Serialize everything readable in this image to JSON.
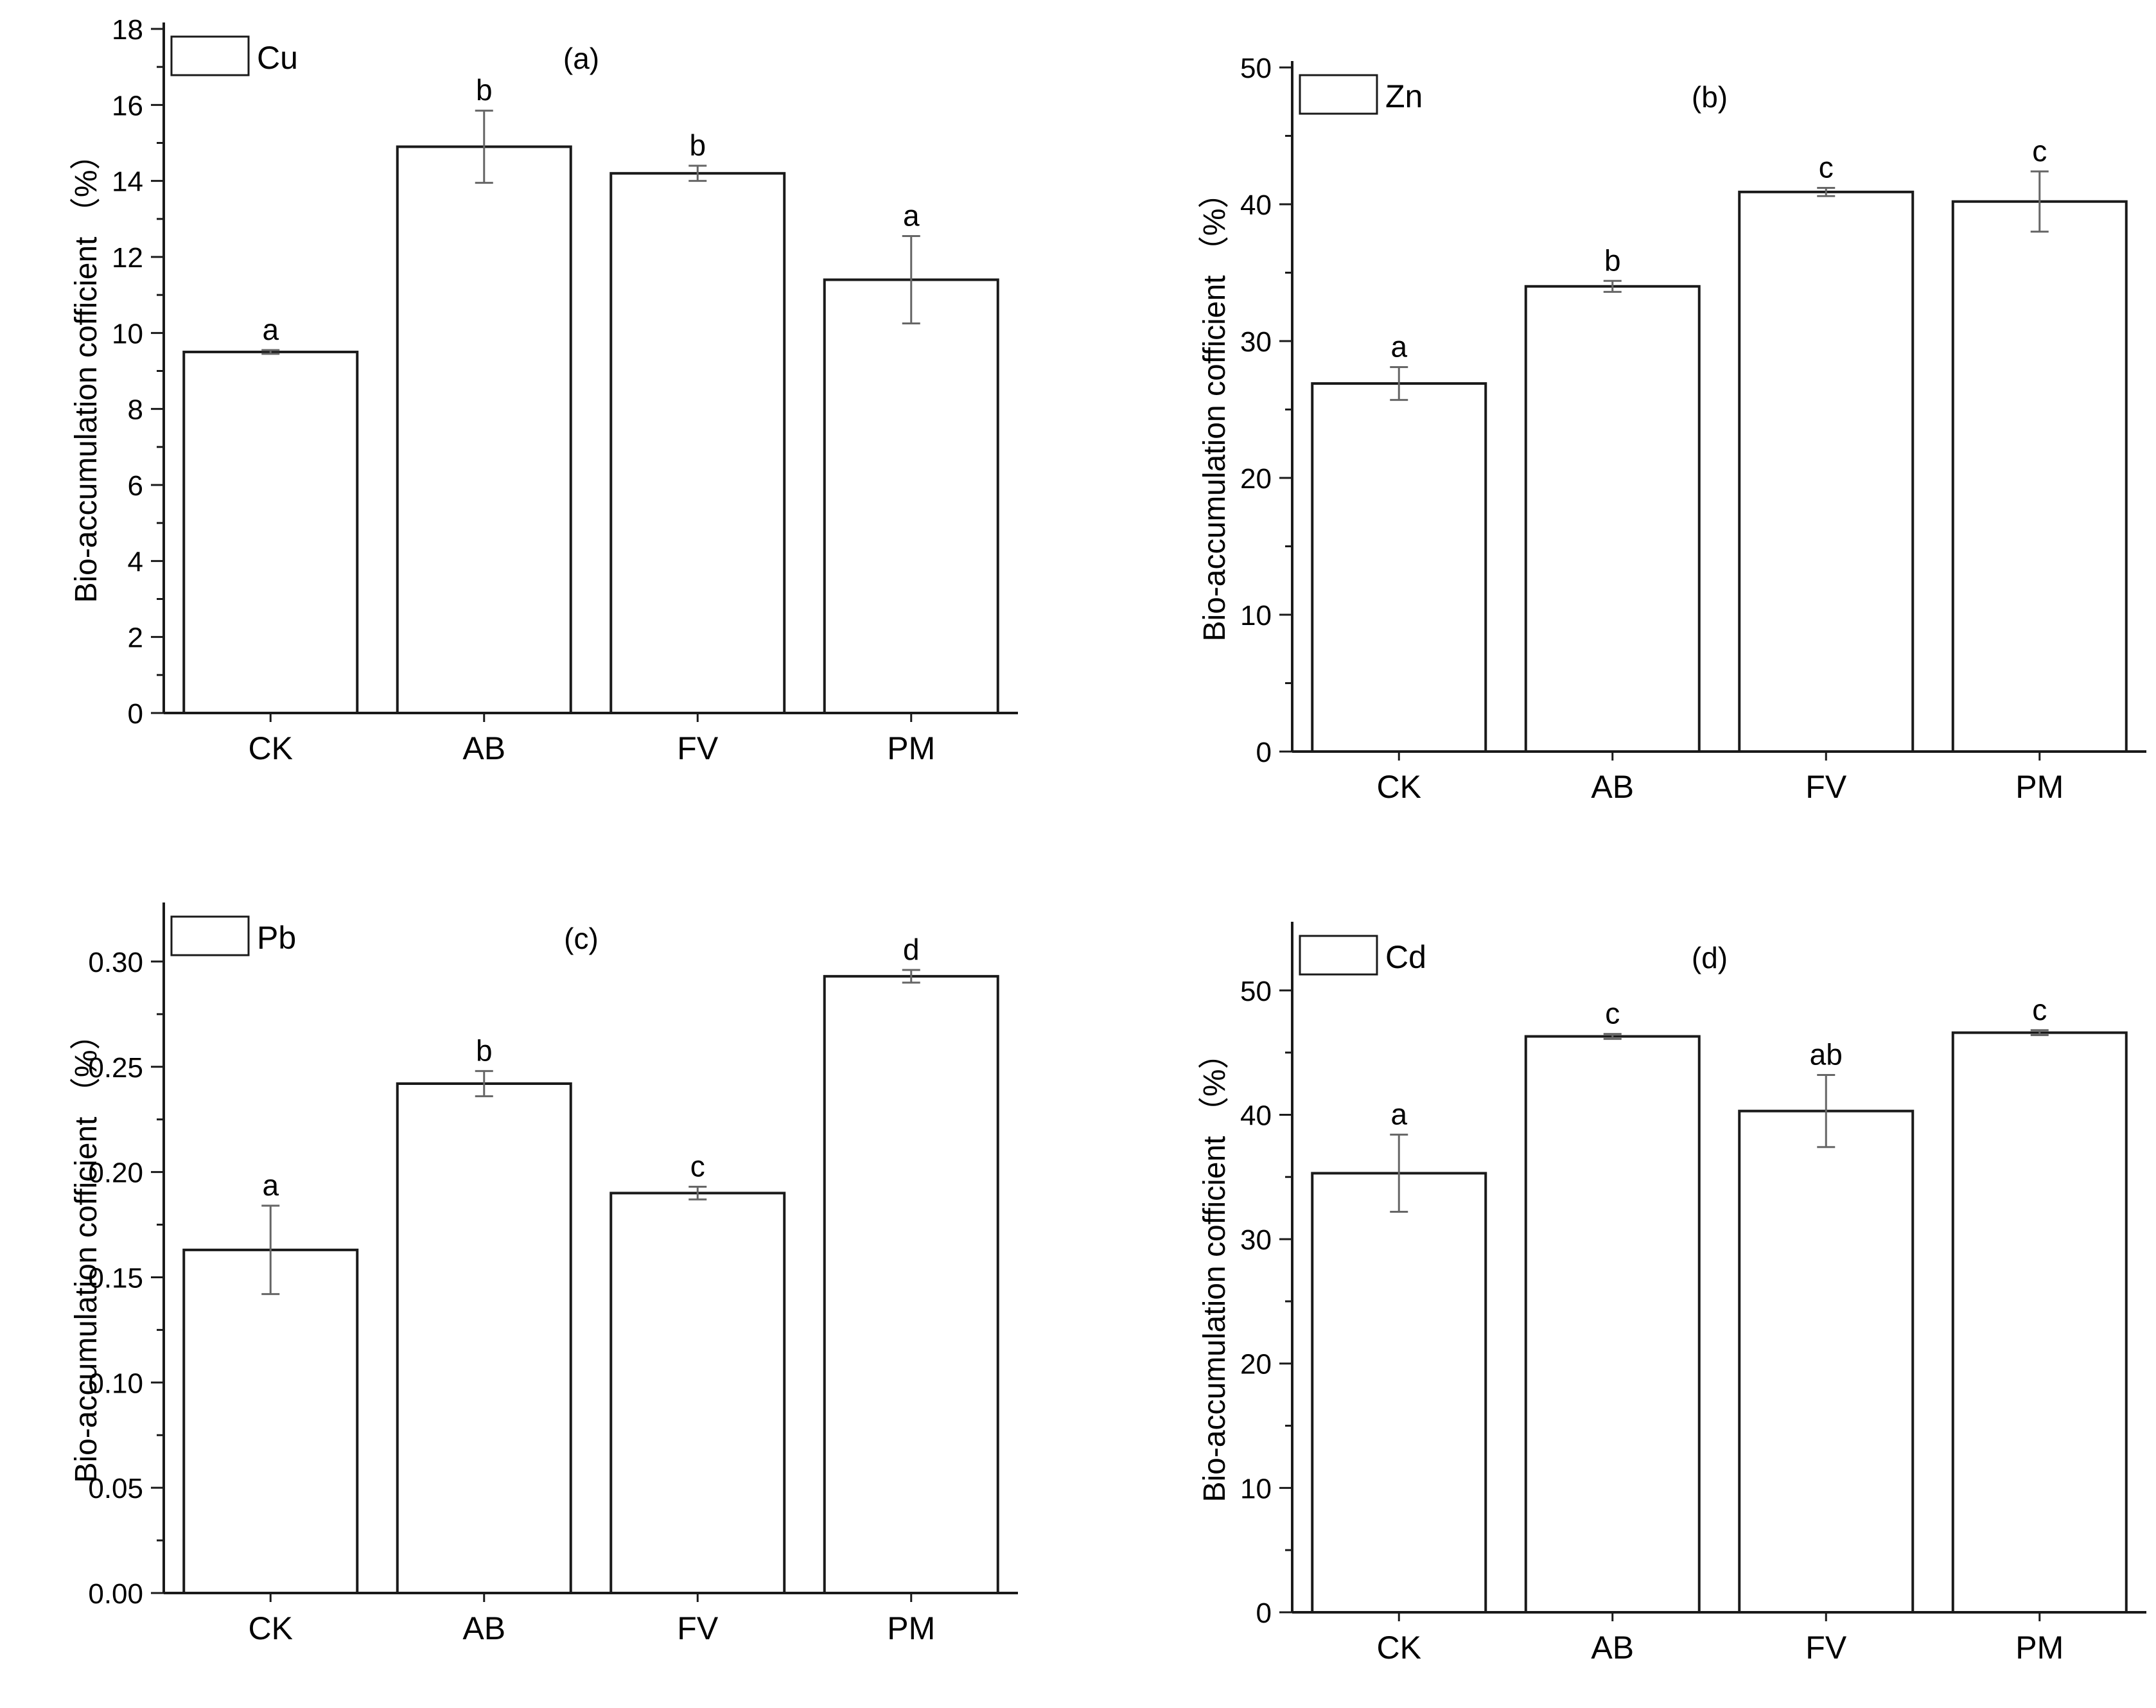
{
  "chart_data": [
    {
      "type": "bar",
      "panel_label": "(a)",
      "legend": "Cu",
      "categories": [
        "CK",
        "AB",
        "FV",
        "PM"
      ],
      "values": [
        9.5,
        14.9,
        14.2,
        11.4
      ],
      "errors": [
        0.05,
        0.95,
        0.2,
        1.15
      ],
      "letters": [
        "a",
        "b",
        "b",
        "a"
      ],
      "ylabel": "Bio-accumulation cofficient （%）",
      "ylim": [
        0,
        18
      ],
      "yticks": [
        0,
        2,
        4,
        6,
        8,
        10,
        12,
        14,
        16,
        18
      ],
      "ytick_labels": [
        "0",
        "2",
        "4",
        "6",
        "8",
        "10",
        "12",
        "14",
        "16",
        "18"
      ]
    },
    {
      "type": "bar",
      "panel_label": "(b)",
      "legend": "Zn",
      "categories": [
        "CK",
        "AB",
        "FV",
        "PM"
      ],
      "values": [
        26.9,
        34.0,
        40.9,
        40.2
      ],
      "errors": [
        1.2,
        0.4,
        0.3,
        2.2
      ],
      "letters": [
        "a",
        "b",
        "c",
        "c"
      ],
      "ylabel": "Bio-accumulation cofficient （%）",
      "ylim": [
        0,
        50
      ],
      "yticks": [
        0,
        10,
        20,
        30,
        40,
        50
      ],
      "ytick_labels": [
        "0",
        "10",
        "20",
        "30",
        "40",
        "50"
      ]
    },
    {
      "type": "bar",
      "panel_label": "(c)",
      "legend": "Pb",
      "categories": [
        "CK",
        "AB",
        "FV",
        "PM"
      ],
      "values": [
        0.163,
        0.242,
        0.19,
        0.293
      ],
      "errors": [
        0.021,
        0.006,
        0.003,
        0.003
      ],
      "letters": [
        "a",
        "b",
        "c",
        "d"
      ],
      "ylabel": "Bio-accumulation cofficient （%）",
      "ylim": [
        0,
        0.325
      ],
      "yticks": [
        0,
        0.05,
        0.1,
        0.15,
        0.2,
        0.25,
        0.3
      ],
      "ytick_labels": [
        "0.00",
        "0.05",
        "0.10",
        "0.15",
        "0.20",
        "0.25",
        "0.30"
      ]
    },
    {
      "type": "bar",
      "panel_label": "(d)",
      "legend": "Cd",
      "categories": [
        "CK",
        "AB",
        "FV",
        "PM"
      ],
      "values": [
        35.3,
        46.3,
        40.3,
        46.6
      ],
      "errors": [
        3.1,
        0.2,
        2.9,
        0.2
      ],
      "letters": [
        "a",
        "c",
        "ab",
        "c"
      ],
      "ylabel": "Bio-accumulation cofficient （%）",
      "ylim": [
        0,
        55
      ],
      "yticks": [
        0,
        10,
        20,
        30,
        40,
        50
      ],
      "ytick_labels": [
        "0",
        "10",
        "20",
        "30",
        "40",
        "50"
      ]
    }
  ]
}
